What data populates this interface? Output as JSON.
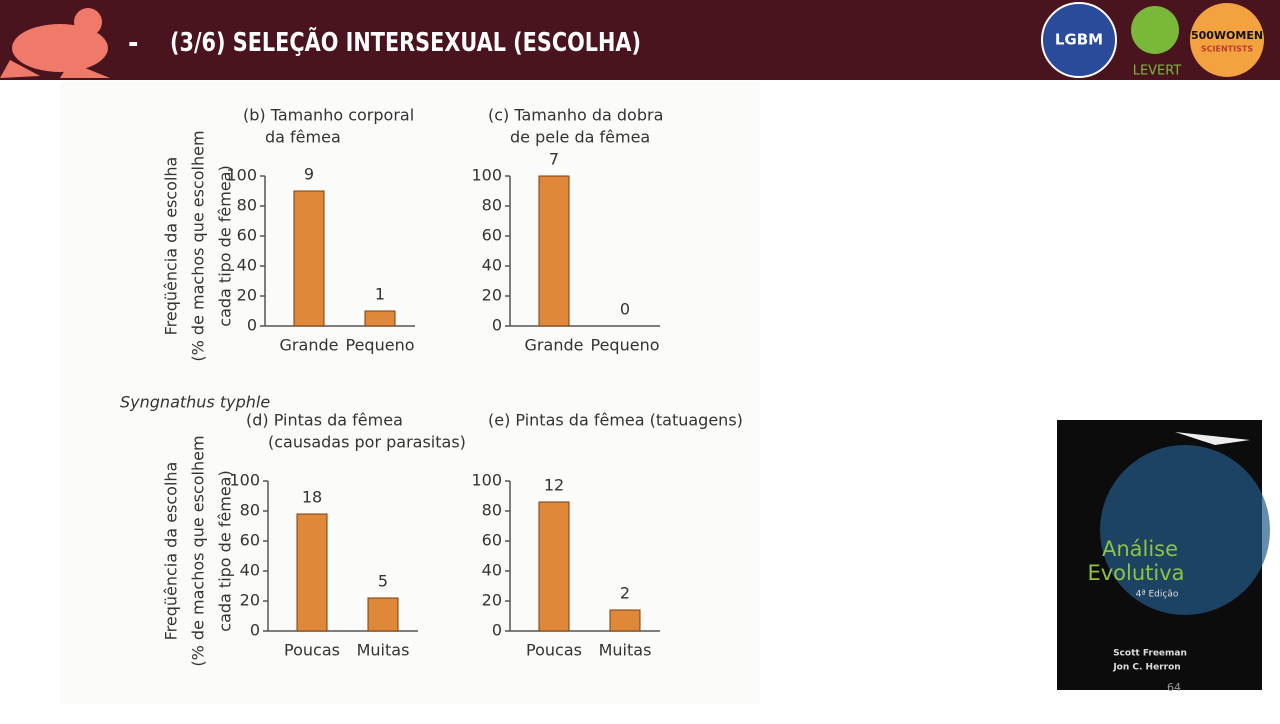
{
  "header": {
    "dash": "-",
    "title": "(3/6) SELEÇÃO INTERSEXUAL (ESCOLHA)",
    "logos": [
      "LGBM",
      "LEVERT",
      "500WOMEN",
      "SCIENTISTS"
    ]
  },
  "species_label": "Syngnathus typhle",
  "chart_data": [
    {
      "type": "bar",
      "title": [
        "(b) Tamanho corporal",
        "da fêmea"
      ],
      "ylabel": [
        "Freqüência da escolha",
        "(% de machos que escolhem",
        "cada tipo de fêmea)"
      ],
      "categories": [
        "Grande",
        "Pequeno"
      ],
      "values": [
        90,
        10
      ],
      "counts": [
        9,
        1
      ],
      "color": "#e0883a",
      "ylim": [
        0,
        100
      ],
      "yticks": [
        0,
        20,
        40,
        60,
        80,
        100
      ]
    },
    {
      "type": "bar",
      "title": [
        "(c) Tamanho da dobra",
        "de pele da fêmea"
      ],
      "categories": [
        "Grande",
        "Pequeno"
      ],
      "values": [
        100,
        0
      ],
      "counts": [
        7,
        0
      ],
      "color": "#e0883a",
      "ylim": [
        0,
        100
      ],
      "yticks": [
        0,
        20,
        40,
        60,
        80,
        100
      ]
    },
    {
      "type": "bar",
      "title": [
        "(d) Pintas da fêmea",
        "(causadas por parasitas)"
      ],
      "ylabel": [
        "Freqüência da escolha",
        "(% de machos que escolhem",
        "cada tipo de fêmea)"
      ],
      "categories": [
        "Poucas",
        "Muitas"
      ],
      "values": [
        78,
        22
      ],
      "counts": [
        18,
        5
      ],
      "color": "#e0883a",
      "ylim": [
        0,
        100
      ],
      "yticks": [
        0,
        20,
        40,
        60,
        80,
        100
      ]
    },
    {
      "type": "bar",
      "title": [
        "(e) Pintas da fêmea (tatuagens)"
      ],
      "categories": [
        "Poucas",
        "Muitas"
      ],
      "values": [
        86,
        14
      ],
      "counts": [
        12,
        2
      ],
      "color": "#e0883a",
      "ylim": [
        0,
        100
      ],
      "yticks": [
        0,
        20,
        40,
        60,
        80,
        100
      ]
    }
  ],
  "book": {
    "title": [
      "Análise",
      "Evolutiva"
    ],
    "edition": "4ª Edição",
    "authors": [
      "Scott Freeman",
      "Jon C. Herron"
    ]
  },
  "page_number": "64"
}
